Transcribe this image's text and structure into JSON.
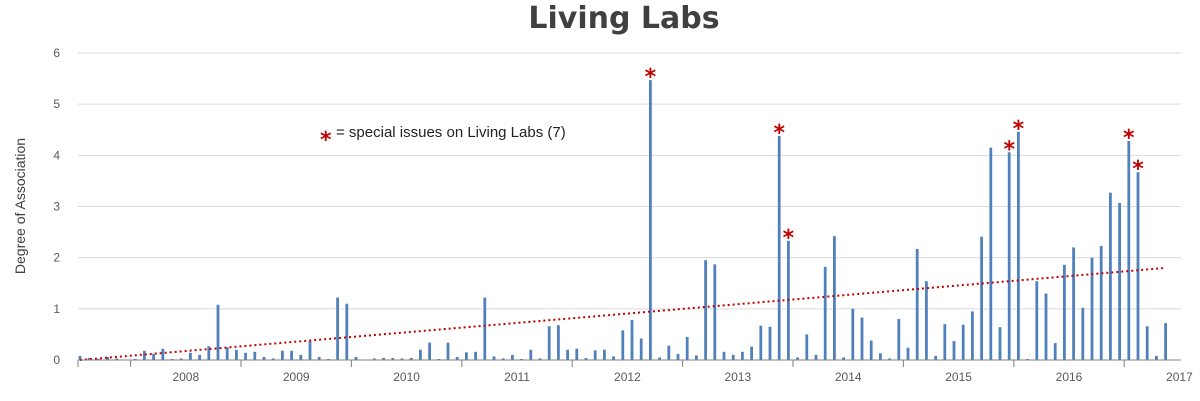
{
  "chart_data": {
    "type": "bar",
    "title": "Living Labs",
    "xlabel": "",
    "ylabel": "Degree of Association",
    "ylim": [
      0,
      6
    ],
    "yticks": [
      "0",
      "1",
      "2",
      "3",
      "4",
      "5",
      "6"
    ],
    "x_start": "2007-07",
    "year_labels": [
      "2008",
      "2009",
      "2010",
      "2011",
      "2012",
      "2013",
      "2014",
      "2015",
      "2016",
      "2017"
    ],
    "grid": "horizontal",
    "series": [
      {
        "values": [
          0.08,
          0.04,
          0.02,
          0.06,
          0.03,
          0.01,
          0.02,
          0.18,
          0.12,
          0.22,
          0.02,
          0.03,
          0.14,
          0.1,
          0.27,
          1.08,
          0.25,
          0.2,
          0.14,
          0.16,
          0.06,
          0.03,
          0.18,
          0.18,
          0.1,
          0.37,
          0.06,
          0.02,
          1.22,
          1.1,
          0.06,
          0.01,
          0.03,
          0.04,
          0.04,
          0.03,
          0.04,
          0.2,
          0.34,
          0.02,
          0.34,
          0.06,
          0.15,
          0.16,
          1.22,
          0.07,
          0.03,
          0.1,
          0.02,
          0.2,
          0.03,
          0.66,
          0.68,
          0.2,
          0.22,
          0.04,
          0.19,
          0.2,
          0.07,
          0.58,
          0.78,
          0.42,
          5.47,
          0.05,
          0.28,
          0.12,
          0.45,
          0.09,
          1.95,
          1.87,
          0.16,
          0.1,
          0.16,
          0.26,
          0.67,
          0.65,
          4.38,
          2.33,
          0.05,
          0.5,
          0.1,
          1.82,
          2.42,
          0.05,
          1.0,
          0.83,
          0.38,
          0.13,
          0.03,
          0.8,
          0.24,
          2.17,
          1.54,
          0.08,
          0.7,
          0.37,
          0.69,
          0.95,
          2.41,
          4.15,
          0.64,
          4.06,
          4.46,
          0.02,
          1.54,
          1.3,
          0.33,
          1.86,
          2.2,
          1.02,
          2.0,
          2.23,
          3.27,
          3.07,
          4.28,
          3.67,
          0.66,
          0.08,
          0.72
        ]
      }
    ],
    "trendline": {
      "style": "linear",
      "from": 0.0,
      "to": 1.8,
      "color": "#c00000"
    },
    "special_issue_months": [
      62,
      76,
      77,
      101,
      102,
      114,
      115
    ],
    "legend": {
      "symbol": "*",
      "text": "= special issues on Living Labs (7)"
    },
    "colors": {
      "bar": "#4f81bd",
      "marker": "#c00000",
      "grid": "#d9d9d9",
      "axis": "#7f7f7f"
    }
  }
}
